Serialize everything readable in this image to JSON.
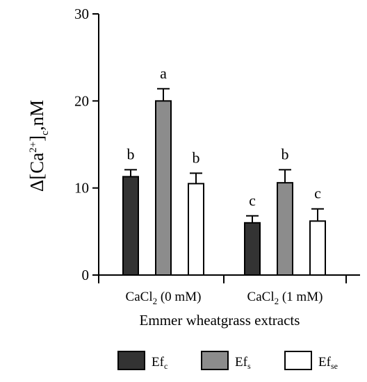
{
  "chart_data": {
    "type": "bar",
    "ylabel": "Δ[Ca2+]c,nM",
    "ylabel_parts": {
      "base": "Δ[Ca",
      "sup": "2+",
      "mid": "]",
      "sub": "c",
      "end": ",nM"
    },
    "xlabel": "Emmer wheatgrass extracts",
    "ylim": [
      0,
      30
    ],
    "yticks": [
      0,
      10,
      20,
      30
    ],
    "categories": [
      {
        "label": "CaCl2 (0 mM)",
        "base": "CaCl",
        "sub": "2",
        "rest": " (0 mM)"
      },
      {
        "label": "CaCl2 (1 mM)",
        "base": "CaCl",
        "sub": "2",
        "rest": " (1 mM)"
      }
    ],
    "series": [
      {
        "name": "Efc",
        "name_base": "Ef",
        "name_sub": "c",
        "color": "#333333",
        "values": [
          11.3,
          6.0
        ],
        "errors": [
          0.8,
          0.8
        ],
        "letters": [
          "b",
          "c"
        ]
      },
      {
        "name": "Efs",
        "name_base": "Ef",
        "name_sub": "s",
        "color": "#8c8c8c",
        "values": [
          20.0,
          10.6
        ],
        "errors": [
          1.4,
          1.5
        ],
        "letters": [
          "a",
          "b"
        ]
      },
      {
        "name": "Efse",
        "name_base": "Ef",
        "name_sub": "se",
        "color": "#ffffff",
        "values": [
          10.5,
          6.2
        ],
        "errors": [
          1.2,
          1.4
        ],
        "letters": [
          "b",
          "c"
        ]
      }
    ],
    "legend_position": "bottom",
    "grid": false
  }
}
